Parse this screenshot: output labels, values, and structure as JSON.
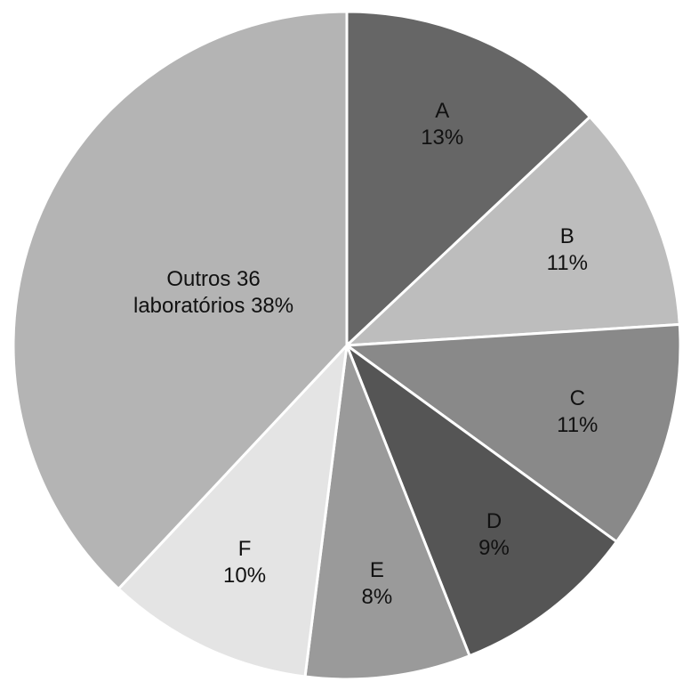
{
  "chart_data": {
    "type": "pie",
    "categories": [
      "A",
      "B",
      "C",
      "D",
      "E",
      "F",
      "Outros 36 laboratórios"
    ],
    "values": [
      13,
      11,
      11,
      9,
      8,
      10,
      38
    ],
    "value_labels": [
      "13%",
      "11%",
      "11%",
      "9%",
      "8%",
      "10%",
      "38%"
    ],
    "colors": [
      "#666666",
      "#bdbdbd",
      "#898989",
      "#555555",
      "#9a9a9a",
      "#e4e4e4",
      "#b4b4b4"
    ]
  }
}
